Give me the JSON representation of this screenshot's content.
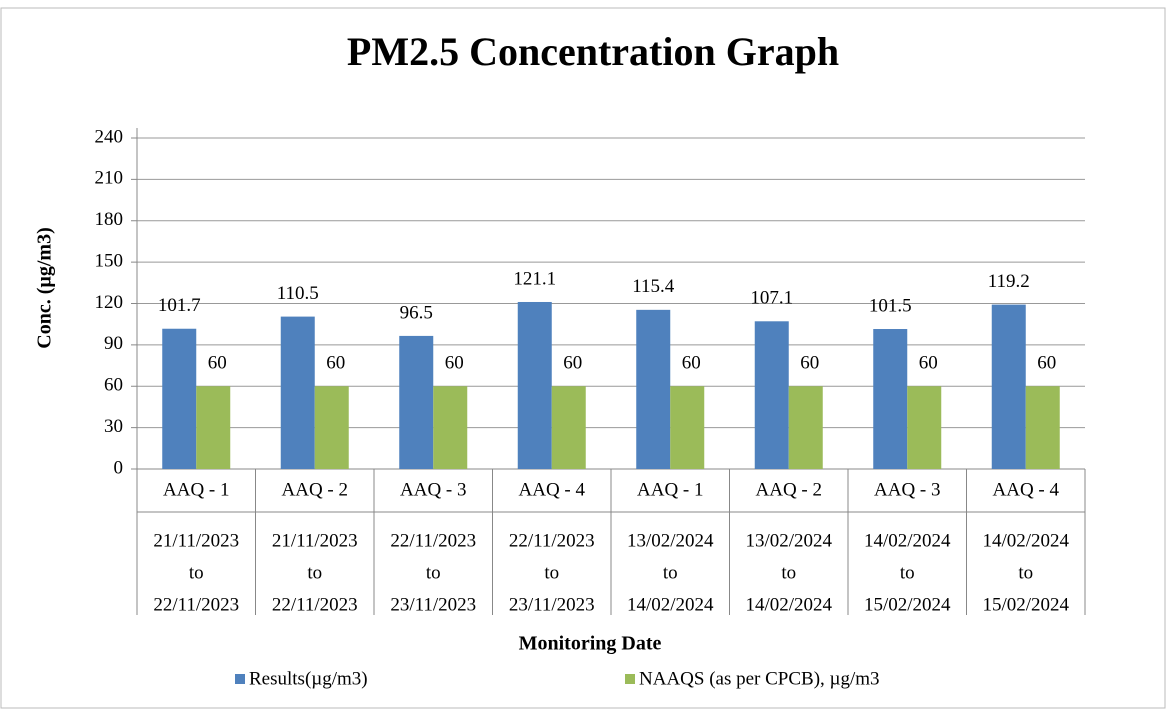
{
  "chart_data": {
    "type": "bar",
    "title": "PM2.5 Concentration Graph",
    "y_label": "Conc. (µg/m3)",
    "x_label": "Monitoring Date",
    "categories": [
      "AAQ - 1",
      "AAQ - 2",
      "AAQ - 3",
      "AAQ - 4",
      "AAQ - 1",
      "AAQ - 2",
      "AAQ - 3",
      "AAQ - 4"
    ],
    "category_dates": [
      [
        "21/11/2023",
        "to",
        "22/11/2023"
      ],
      [
        "21/11/2023",
        "to",
        "22/11/2023"
      ],
      [
        "22/11/2023",
        "to",
        "23/11/2023"
      ],
      [
        "22/11/2023",
        "to",
        "23/11/2023"
      ],
      [
        "13/02/2024",
        "to",
        "14/02/2024"
      ],
      [
        "13/02/2024",
        "to",
        "14/02/2024"
      ],
      [
        "14/02/2024",
        "to",
        "15/02/2024"
      ],
      [
        "14/02/2024",
        "to",
        "15/02/2024"
      ]
    ],
    "series": [
      {
        "name": "Results(µg/m3)",
        "color": "#4f81bd",
        "values": [
          101.7,
          110.5,
          96.5,
          121.1,
          115.4,
          107.1,
          101.5,
          119.2
        ]
      },
      {
        "name": "NAAQS (as per CPCB), µg/m3",
        "color": "#9bbb59",
        "values": [
          60,
          60,
          60,
          60,
          60,
          60,
          60,
          60
        ]
      }
    ],
    "ylim": [
      0,
      240
    ],
    "yticks": [
      0,
      30,
      60,
      90,
      120,
      150,
      180,
      210,
      240
    ],
    "grid": true,
    "legend": "bottom"
  }
}
